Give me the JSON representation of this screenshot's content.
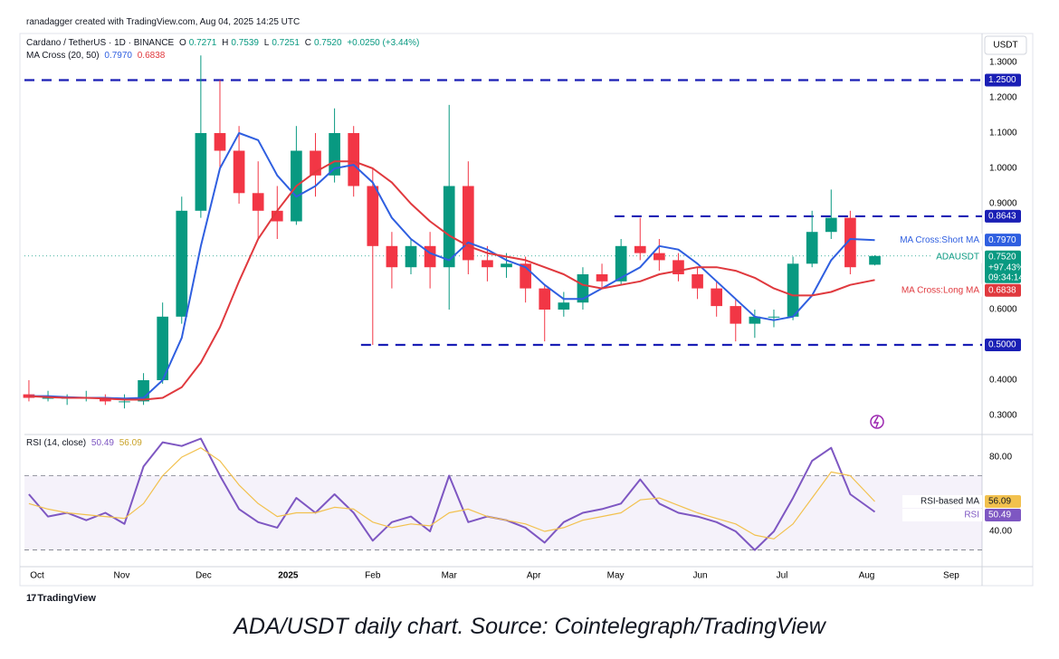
{
  "header": {
    "credit": "ranadagger created with TradingView.com, Aug 04, 2025 14:25 UTC",
    "change": "+0.0250 (+3.44%)",
    "ohlc_letters": [
      "O",
      "H",
      "L",
      "C"
    ],
    "axis_unit": "USDT",
    "price_tag_change": "+97.43%",
    "price_tag_timer": "09:34:14"
  },
  "footer": {
    "logo": "TradingView",
    "caption": "ADA/USDT daily chart. Source: Cointelegraph/TradingView"
  },
  "chart_data": {
    "type": "candlestick",
    "title": "Cardano / TetherUS · 1D · BINANCE",
    "indicator_title": "MA Cross (20, 50)",
    "x": [
      -3,
      4,
      11,
      18,
      25,
      32,
      39,
      46,
      53,
      60,
      67,
      74,
      81,
      88,
      95,
      102,
      109,
      116,
      123,
      130,
      137,
      144,
      151,
      158,
      165,
      172,
      179,
      186,
      193,
      200,
      207,
      214,
      221,
      228,
      235,
      242,
      249,
      256,
      263,
      270,
      277,
      284,
      291,
      298,
      307
    ],
    "xlim": [
      -4.64,
      346.3
    ],
    "xticks": [
      {
        "value": 0,
        "label": "Oct"
      },
      {
        "value": 31,
        "label": "Nov"
      },
      {
        "value": 61,
        "label": "Dec"
      },
      {
        "value": 92,
        "label": "2025"
      },
      {
        "value": 123,
        "label": "Feb"
      },
      {
        "value": 151,
        "label": "Mar"
      },
      {
        "value": 182,
        "label": "Apr"
      },
      {
        "value": 212,
        "label": "May"
      },
      {
        "value": 243,
        "label": "Jun"
      },
      {
        "value": 273,
        "label": "Jul"
      },
      {
        "value": 304,
        "label": "Aug"
      },
      {
        "value": 335,
        "label": "Sep"
      }
    ],
    "ylim": [
      0.2513,
      1.3744
    ],
    "yticks": [
      {
        "value": 0.3,
        "label": "0.3000"
      },
      {
        "value": 0.4,
        "label": "0.4000"
      },
      {
        "value": 0.6,
        "label": "0.6000"
      },
      {
        "value": 0.9,
        "label": "0.9000"
      },
      {
        "value": 1.0,
        "label": "1.0000"
      },
      {
        "value": 1.1,
        "label": "1.1000"
      },
      {
        "value": 1.2,
        "label": "1.2000"
      },
      {
        "value": 1.3,
        "label": "1.3000"
      }
    ],
    "candles": {
      "name": "ADAUSDT",
      "up_color": "#089981",
      "down_color": "#f23645",
      "open": [
        0.36,
        0.35,
        0.35,
        0.35,
        0.35,
        0.34,
        0.34,
        0.4,
        0.58,
        0.88,
        1.1,
        1.05,
        0.93,
        0.88,
        0.85,
        1.05,
        0.98,
        1.1,
        0.95,
        0.78,
        0.72,
        0.78,
        0.72,
        0.95,
        0.74,
        0.72,
        0.73,
        0.66,
        0.6,
        0.62,
        0.7,
        0.68,
        0.78,
        0.76,
        0.74,
        0.7,
        0.66,
        0.61,
        0.56,
        0.58,
        0.58,
        0.73,
        0.82,
        0.86,
        0.7271
      ],
      "high": [
        0.4,
        0.37,
        0.36,
        0.37,
        0.36,
        0.36,
        0.42,
        0.62,
        0.92,
        1.32,
        1.25,
        1.12,
        1.02,
        0.95,
        1.12,
        1.1,
        1.17,
        1.12,
        1.0,
        0.82,
        0.8,
        0.82,
        1.18,
        1.02,
        0.78,
        0.76,
        0.75,
        0.67,
        0.65,
        0.72,
        0.73,
        0.8,
        0.86,
        0.8,
        0.76,
        0.72,
        0.68,
        0.63,
        0.6,
        0.6,
        0.75,
        0.88,
        0.94,
        0.88,
        0.7539
      ],
      "low": [
        0.34,
        0.34,
        0.33,
        0.34,
        0.33,
        0.32,
        0.33,
        0.39,
        0.56,
        0.86,
        1.0,
        0.9,
        0.8,
        0.8,
        0.84,
        0.92,
        0.96,
        0.92,
        0.5,
        0.66,
        0.7,
        0.66,
        0.6,
        0.7,
        0.68,
        0.69,
        0.62,
        0.51,
        0.58,
        0.6,
        0.66,
        0.67,
        0.74,
        0.71,
        0.68,
        0.63,
        0.58,
        0.51,
        0.52,
        0.55,
        0.57,
        0.72,
        0.8,
        0.7,
        0.7251
      ],
      "close": [
        0.35,
        0.35,
        0.35,
        0.35,
        0.34,
        0.34,
        0.4,
        0.58,
        0.88,
        1.1,
        1.05,
        0.93,
        0.88,
        0.85,
        1.05,
        0.98,
        1.1,
        0.95,
        0.78,
        0.72,
        0.78,
        0.72,
        0.95,
        0.74,
        0.72,
        0.73,
        0.66,
        0.6,
        0.62,
        0.7,
        0.68,
        0.78,
        0.76,
        0.74,
        0.7,
        0.66,
        0.61,
        0.56,
        0.58,
        0.58,
        0.73,
        0.82,
        0.86,
        0.72,
        0.752
      ],
      "last_labels": {
        "close": "0.7520"
      }
    },
    "series": [
      {
        "name": "MA Cross:Short MA",
        "color": "#2f5fe0",
        "last_label": "0.7970",
        "values": [
          0.355,
          0.355,
          0.352,
          0.35,
          0.35,
          0.348,
          0.35,
          0.4,
          0.52,
          0.78,
          1.0,
          1.1,
          1.08,
          0.98,
          0.92,
          0.95,
          1.0,
          1.01,
          0.96,
          0.86,
          0.8,
          0.76,
          0.74,
          0.79,
          0.77,
          0.74,
          0.72,
          0.67,
          0.63,
          0.63,
          0.66,
          0.69,
          0.72,
          0.78,
          0.77,
          0.73,
          0.68,
          0.63,
          0.58,
          0.57,
          0.58,
          0.64,
          0.74,
          0.8,
          0.797
        ]
      },
      {
        "name": "MA Cross:Long MA",
        "color": "#e0393e",
        "values": [
          0.355,
          0.352,
          0.35,
          0.35,
          0.348,
          0.345,
          0.345,
          0.35,
          0.38,
          0.45,
          0.55,
          0.68,
          0.8,
          0.88,
          0.95,
          0.99,
          1.02,
          1.02,
          1.0,
          0.96,
          0.9,
          0.85,
          0.81,
          0.78,
          0.76,
          0.75,
          0.74,
          0.72,
          0.7,
          0.67,
          0.66,
          0.67,
          0.68,
          0.7,
          0.71,
          0.72,
          0.72,
          0.71,
          0.69,
          0.66,
          0.64,
          0.64,
          0.65,
          0.67,
          0.6838
        ]
      }
    ],
    "levels": [
      {
        "value": 1.25,
        "label": "1.2500",
        "x_start": -4.64
      },
      {
        "value": 0.8643,
        "label": "0.8643",
        "x_start": 211.6
      },
      {
        "value": 0.5,
        "label": "0.5000",
        "x_start": 118.7
      }
    ],
    "level_color": "#1a1fb5",
    "rsi": {
      "title": "RSI (14, close)",
      "ylim": [
        21.5,
        91.2
      ],
      "yticks": [
        {
          "value": 40,
          "label": "40.00"
        },
        {
          "value": 80,
          "label": "80.00"
        }
      ],
      "band": [
        30,
        70
      ],
      "series": [
        {
          "name": "RSI",
          "color": "#7e57c2",
          "values": [
            60,
            48,
            50,
            46,
            50,
            44,
            75,
            88,
            86,
            90,
            70,
            52,
            45,
            42,
            58,
            50,
            60,
            50,
            35,
            45,
            48,
            40,
            70,
            45,
            48,
            46,
            42,
            34,
            45,
            50,
            52,
            55,
            68,
            55,
            50,
            48,
            45,
            40,
            30,
            40,
            58,
            78,
            85,
            60,
            50.49
          ]
        },
        {
          "name": "RSI-based MA",
          "color": "#f2c14e",
          "values": [
            55,
            52,
            50,
            49,
            48,
            47,
            55,
            70,
            80,
            85,
            78,
            65,
            55,
            48,
            50,
            50,
            53,
            52,
            45,
            42,
            44,
            43,
            50,
            52,
            48,
            46,
            44,
            40,
            42,
            46,
            48,
            50,
            57,
            58,
            54,
            50,
            47,
            44,
            38,
            36,
            44,
            58,
            72,
            70,
            56.09
          ]
        }
      ]
    }
  }
}
